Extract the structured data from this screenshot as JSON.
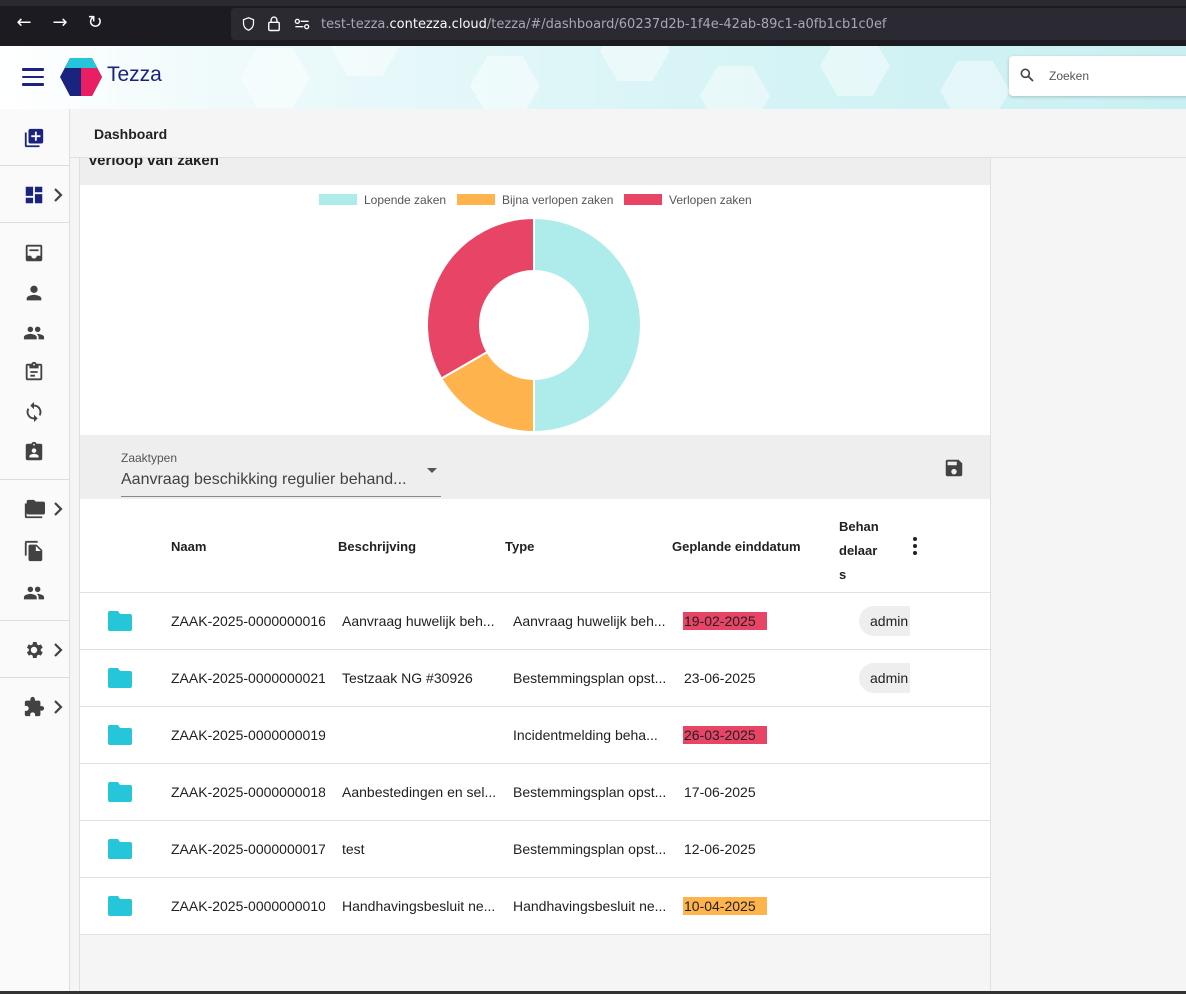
{
  "browser": {
    "url_prefix": "test-tezza.",
    "url_domain": "contezza.cloud",
    "url_path": "/tezza/#/dashboard/60237d2b-1f4e-42ab-89c1-a0fb1cb1c0ef",
    "back_icon": "←",
    "forward_icon": "→",
    "reload_icon": "↻"
  },
  "header": {
    "brand": "Tezza",
    "search_placeholder": "Zoeken"
  },
  "page": {
    "title": "Dashboard"
  },
  "card": {
    "title": "Verloop van zaken"
  },
  "chart_data": {
    "type": "pie",
    "categories": [
      "Lopende zaken",
      "Bijna verlopen zaken",
      "Verlopen zaken"
    ],
    "values": [
      3,
      1,
      2
    ],
    "colors": [
      "#aeebeb",
      "#ffb34d",
      "#e84466"
    ],
    "legend": "top",
    "donut": true
  },
  "filter": {
    "label": "Zaaktypen",
    "value": "Aanvraag beschikking regulier behand..."
  },
  "table": {
    "columns": {
      "naam": "Naam",
      "beschrijving": "Beschrijving",
      "type": "Type",
      "einddatum": "Geplande einddatum",
      "behandelaars": "Behandelaars"
    },
    "rows": [
      {
        "naam": "ZAAK-2025-0000000016",
        "beschrijving": "Aanvraag huwelijk beh...",
        "type": "Aanvraag huwelijk beh...",
        "datum": "19-02-2025",
        "status": "expired",
        "behandelaar": "admin"
      },
      {
        "naam": "ZAAK-2025-0000000021",
        "beschrijving": "Testzaak NG #30926",
        "type": "Bestemmingsplan opst...",
        "datum": "23-06-2025",
        "status": "open",
        "behandelaar": "admin"
      },
      {
        "naam": "ZAAK-2025-0000000019",
        "beschrijving": "",
        "type": "Incidentmelding beha...",
        "datum": "26-03-2025",
        "status": "expired",
        "behandelaar": ""
      },
      {
        "naam": "ZAAK-2025-0000000018",
        "beschrijving": "Aanbestedingen en sel...",
        "type": "Bestemmingsplan opst...",
        "datum": "17-06-2025",
        "status": "open",
        "behandelaar": ""
      },
      {
        "naam": "ZAAK-2025-0000000017",
        "beschrijving": "test",
        "type": "Bestemmingsplan opst...",
        "datum": "12-06-2025",
        "status": "open",
        "behandelaar": ""
      },
      {
        "naam": "ZAAK-2025-0000000010",
        "beschrijving": "Handhavingsbesluit ne...",
        "type": "Handhavingsbesluit ne...",
        "datum": "10-04-2025",
        "status": "almost",
        "behandelaar": ""
      }
    ]
  },
  "status_colors": {
    "expired": "#e84466",
    "almost": "#ffb34d",
    "open": "transparent"
  },
  "sidenav": {
    "icons": [
      "add-case-icon",
      "dashboard-icon",
      "inbox-icon",
      "person-icon",
      "group-icon",
      "clipboard-icon",
      "sync-icon",
      "clipboard-account-icon",
      "folder-icon",
      "documents-icon",
      "contacts-icon",
      "settings-icon",
      "extension-icon"
    ]
  }
}
